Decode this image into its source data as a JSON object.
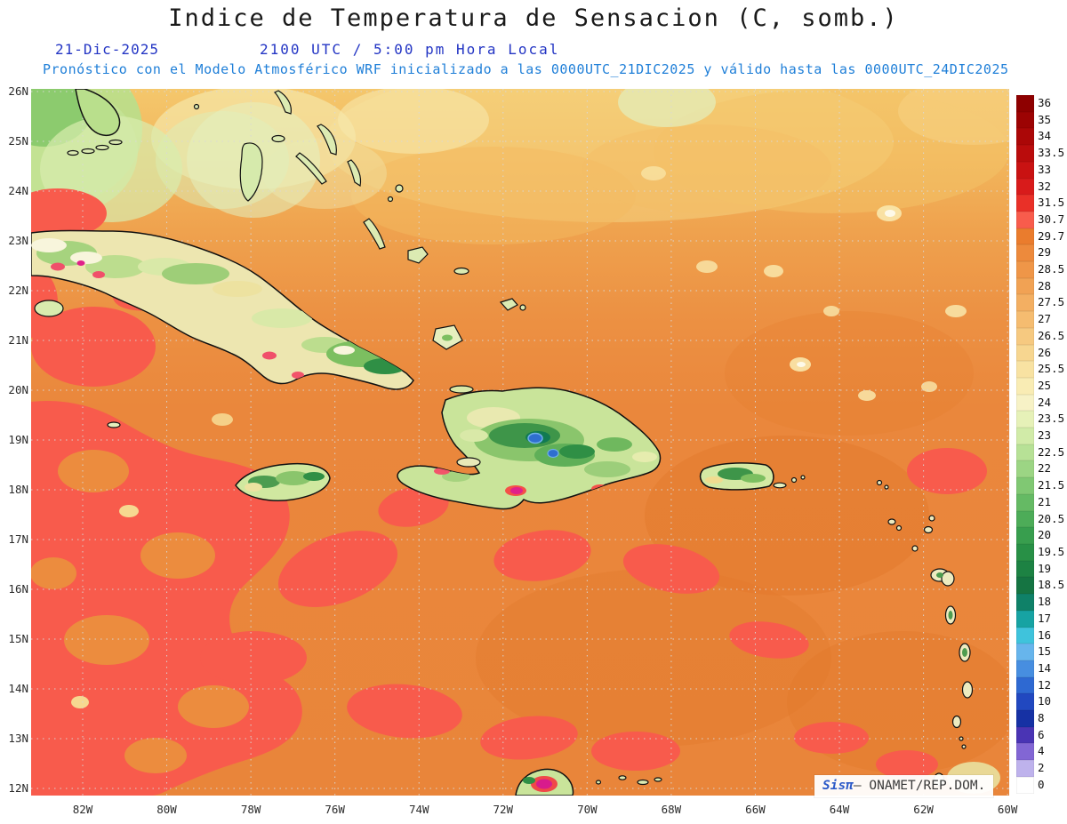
{
  "title": "Indice de Temperatura de Sensacion (C, somb.)",
  "datetime": {
    "date": "21-Dic-2025",
    "time": "2100 UTC / 5:00 pm Hora Local"
  },
  "forecast_note": "Pronóstico con el Modelo Atmosférico WRF inicializado a las 0000UTC_21DIC2025 y válido hasta las 0000UTC_24DIC2025",
  "map": {
    "lat_labels": [
      "26N",
      "25N",
      "24N",
      "23N",
      "22N",
      "21N",
      "20N",
      "19N",
      "18N",
      "17N",
      "16N",
      "15N",
      "14N",
      "13N",
      "12N"
    ],
    "lon_labels": [
      "82W",
      "80W",
      "78W",
      "76W",
      "74W",
      "72W",
      "70W",
      "68W",
      "66W",
      "64W",
      "62W",
      "60W"
    ]
  },
  "colorbar": {
    "entries": [
      {
        "value": "36",
        "color": "#8e0000"
      },
      {
        "value": "35",
        "color": "#9c0303"
      },
      {
        "value": "34",
        "color": "#ab0707"
      },
      {
        "value": "33.5",
        "color": "#ba0c0c"
      },
      {
        "value": "33",
        "color": "#c91212"
      },
      {
        "value": "32",
        "color": "#d81b1b"
      },
      {
        "value": "31.5",
        "color": "#e93028"
      },
      {
        "value": "30.7",
        "color": "#f85c4c"
      },
      {
        "value": "29.7",
        "color": "#ea7c2d"
      },
      {
        "value": "29",
        "color": "#ed8a3c"
      },
      {
        "value": "28.5",
        "color": "#ef9648"
      },
      {
        "value": "28",
        "color": "#f1a254"
      },
      {
        "value": "27.5",
        "color": "#f3af62"
      },
      {
        "value": "27",
        "color": "#f5bc70"
      },
      {
        "value": "26.5",
        "color": "#f6c980"
      },
      {
        "value": "26",
        "color": "#f7d690"
      },
      {
        "value": "25.5",
        "color": "#f8e2a2"
      },
      {
        "value": "25",
        "color": "#f9ecb4"
      },
      {
        "value": "24",
        "color": "#f7f2c6"
      },
      {
        "value": "23.5",
        "color": "#e6f1b8"
      },
      {
        "value": "23",
        "color": "#d1eba8"
      },
      {
        "value": "22.5",
        "color": "#b7e196"
      },
      {
        "value": "22",
        "color": "#9cd584"
      },
      {
        "value": "21.5",
        "color": "#80c873"
      },
      {
        "value": "21",
        "color": "#65ba64"
      },
      {
        "value": "20.5",
        "color": "#4dac58"
      },
      {
        "value": "20",
        "color": "#389e4e"
      },
      {
        "value": "19.5",
        "color": "#289046"
      },
      {
        "value": "19",
        "color": "#1d8243"
      },
      {
        "value": "18.5",
        "color": "#157442"
      },
      {
        "value": "18",
        "color": "#0f8168"
      },
      {
        "value": "17",
        "color": "#17a3a3"
      },
      {
        "value": "16",
        "color": "#3fc3dc"
      },
      {
        "value": "15",
        "color": "#67b5ec"
      },
      {
        "value": "14",
        "color": "#478ee0"
      },
      {
        "value": "12",
        "color": "#2e69d2"
      },
      {
        "value": "10",
        "color": "#2148c0"
      },
      {
        "value": "8",
        "color": "#1631a4"
      },
      {
        "value": "6",
        "color": "#4a34b4"
      },
      {
        "value": "4",
        "color": "#8266d4"
      },
      {
        "value": "2",
        "color": "#beb2ec"
      },
      {
        "value": "0",
        "color": "#ffffff"
      }
    ]
  },
  "watermark": {
    "brand": "Sisπ",
    "text": "– ONAMET/REP.DOM."
  },
  "colors": {
    "title_text": "#1a1a1a",
    "date_line_text": "#2335c4",
    "forecast_line_text": "#1f7fd8",
    "sea_orange": "#ec8c3e",
    "hot_red": "#f85b4c"
  }
}
